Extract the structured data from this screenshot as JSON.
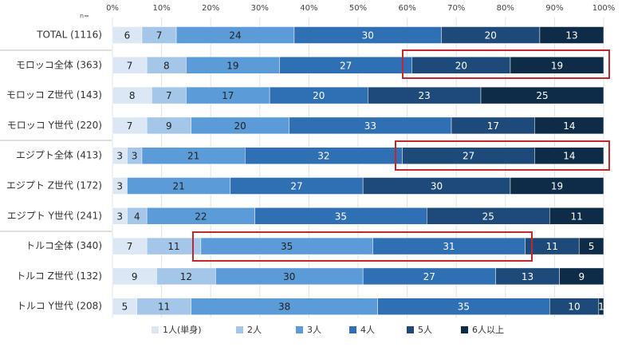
{
  "chart_data": {
    "type": "stacked-bar-horizontal",
    "n_label": "n=",
    "categories": [
      "TOTAL (1116)",
      "モロッコ全体 (363)",
      "モロッコ Z世代 (143)",
      "モロッコ Y世代 (220)",
      "エジプト全体 (413)",
      "エジプト Z世代 (172)",
      "エジプト Y世代 (241)",
      "トルコ全体 (340)",
      "トルコ Z世代 (132)",
      "トルコ Y世代 (208)"
    ],
    "series": [
      {
        "name": "1人(単身)",
        "color": "#dbe7f4",
        "values": [
          6,
          7,
          8,
          7,
          3,
          3,
          3,
          7,
          9,
          5
        ]
      },
      {
        "name": "2人",
        "color": "#a4c6e8",
        "values": [
          7,
          8,
          7,
          9,
          3,
          0,
          4,
          11,
          12,
          11
        ]
      },
      {
        "name": "3人",
        "color": "#5a9bd8",
        "values": [
          24,
          19,
          17,
          20,
          21,
          21,
          22,
          35,
          30,
          38
        ]
      },
      {
        "name": "4人",
        "color": "#2f6fb3",
        "values": [
          30,
          27,
          20,
          33,
          32,
          27,
          35,
          31,
          27,
          35
        ]
      },
      {
        "name": "5人",
        "color": "#1d4a78",
        "values": [
          20,
          20,
          23,
          17,
          27,
          30,
          25,
          11,
          13,
          10
        ]
      },
      {
        "name": "6人以上",
        "color": "#0e2c48",
        "values": [
          13,
          19,
          25,
          14,
          14,
          19,
          11,
          5,
          9,
          1
        ]
      }
    ],
    "xlim": [
      0,
      100
    ],
    "xticks": [
      {
        "value": 0,
        "label": "0%"
      },
      {
        "value": 10,
        "label": "10%"
      },
      {
        "value": 20,
        "label": "20%"
      },
      {
        "value": 30,
        "label": "30%"
      },
      {
        "value": 40,
        "label": "40%"
      },
      {
        "value": 50,
        "label": "50%"
      },
      {
        "value": 60,
        "label": "60%"
      },
      {
        "value": 70,
        "label": "70%"
      },
      {
        "value": 80,
        "label": "80%"
      },
      {
        "value": 90,
        "label": "90%"
      },
      {
        "value": 100,
        "label": "100%"
      }
    ],
    "grid": true
  }
}
